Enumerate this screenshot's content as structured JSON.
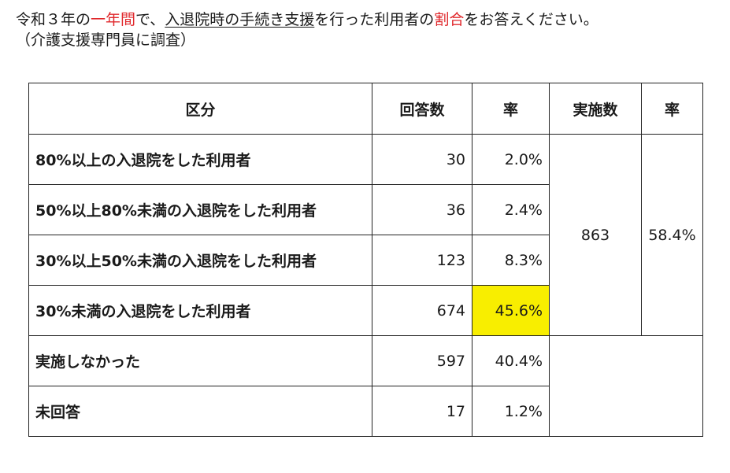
{
  "question": {
    "line1_a": "令和３年の",
    "line1_red1": "一年間",
    "line1_b": "で、",
    "line1_underline": "入退院時の手続き支援",
    "line1_c": "を行った利用者の",
    "line1_red2": "割合",
    "line1_d": "をお答えください。",
    "line2": "（介護支援専門員に調査）"
  },
  "table": {
    "headers": [
      "区分",
      "回答数",
      "率",
      "実施数",
      "率"
    ],
    "rows": [
      {
        "label": "80%以上の入退院をした利用者",
        "count": "30",
        "rate": "2.0%"
      },
      {
        "label": "50%以上80%未満の入退院をした利用者",
        "count": "36",
        "rate": "2.4%"
      },
      {
        "label": "30%以上50%未満の入退院をした利用者",
        "count": "123",
        "rate": "8.3%"
      },
      {
        "label": "30%未満の入退院をした利用者",
        "count": "674",
        "rate": "45.6%"
      },
      {
        "label": "実施しなかった",
        "count": "597",
        "rate": "40.4%"
      },
      {
        "label": "未回答",
        "count": "17",
        "rate": "1.2%"
      }
    ],
    "implemented": {
      "count": "863",
      "rate": "58.4%"
    },
    "highlight_color": "#f8ee00"
  }
}
